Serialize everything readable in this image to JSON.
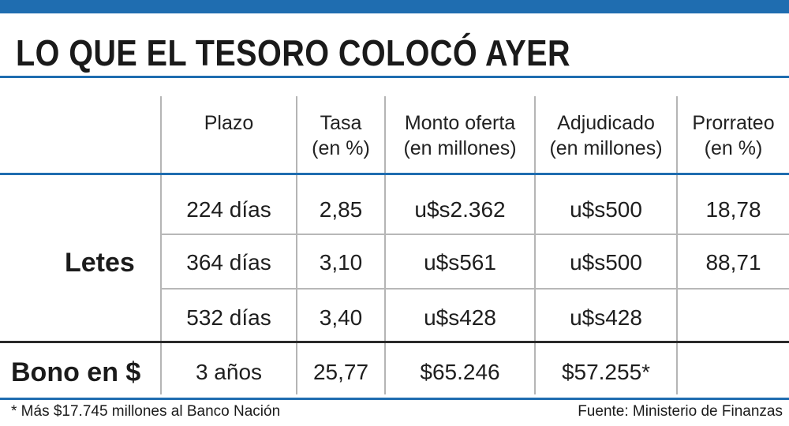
{
  "title": "LO QUE EL TESORO COLOCÓ AYER",
  "headers": {
    "plazo": "Plazo",
    "tasa": [
      "Tasa",
      "(en %)"
    ],
    "monto": [
      "Monto oferta",
      "(en millones)"
    ],
    "adjudicado": [
      "Adjudicado",
      "(en millones)"
    ],
    "prorrateo": [
      "Prorrateo",
      "(en %)"
    ]
  },
  "groups": {
    "letes": "Letes",
    "bono": "Bono en $"
  },
  "rows": [
    {
      "plazo": "224 días",
      "tasa": "2,85",
      "monto": "u$s2.362",
      "adjudicado": "u$s500",
      "prorrateo": "18,78"
    },
    {
      "plazo": "364 días",
      "tasa": "3,10",
      "monto": "u$s561",
      "adjudicado": "u$s500",
      "prorrateo": "88,71"
    },
    {
      "plazo": "532 días",
      "tasa": "3,40",
      "monto": "u$s428",
      "adjudicado": "u$s428",
      "prorrateo": ""
    },
    {
      "plazo": "3 años",
      "tasa": "25,77",
      "monto": "$65.246",
      "adjudicado": "$57.255*",
      "prorrateo": ""
    }
  ],
  "footer": {
    "note": "* Más $17.745 millones al Banco Nación",
    "source": "Fuente: Ministerio de Finanzas"
  },
  "colors": {
    "accent": "#1f6db0",
    "text": "#1b1b1b",
    "grid": "#b5b5b5"
  }
}
